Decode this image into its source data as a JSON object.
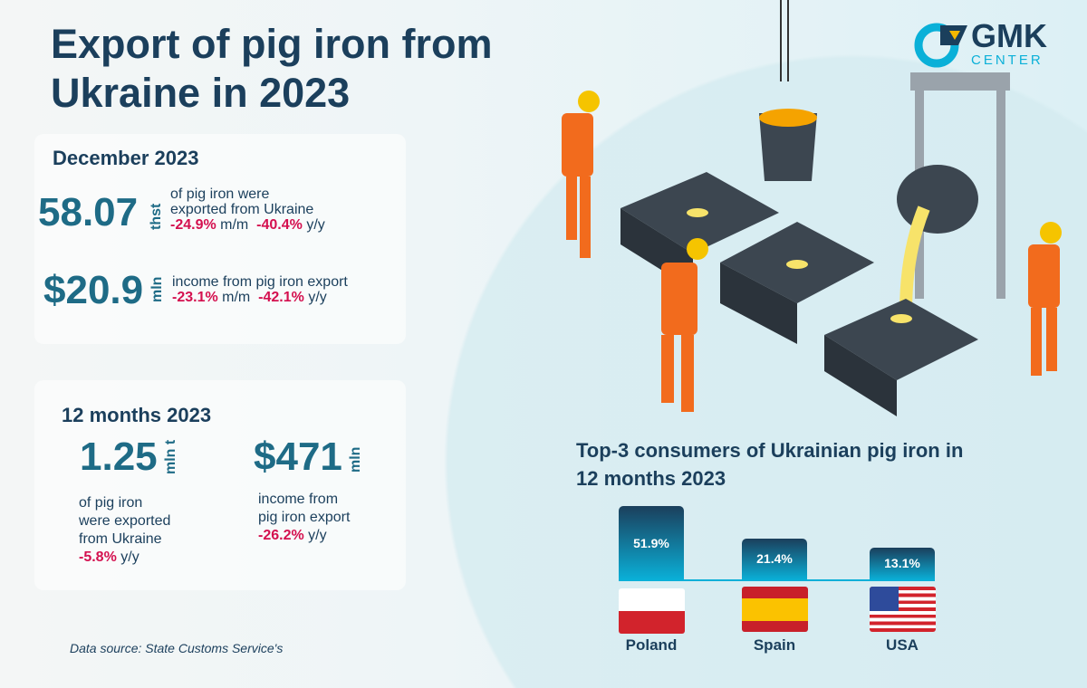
{
  "title": "Export of pig iron from Ukraine in 2023",
  "december": {
    "heading": "December 2023",
    "volume": {
      "value": "58.07",
      "unit": "thst",
      "line1": "of pig iron were",
      "line2": "exported from Ukraine",
      "mm": "-24.9%",
      "mm_label": "m/m",
      "yy": "-40.4%",
      "yy_label": "y/y"
    },
    "income": {
      "value": "$20.9",
      "unit": "mln",
      "line1": "income from pig iron export",
      "mm": "-23.1%",
      "mm_label": "m/m",
      "yy": "-42.1%",
      "yy_label": "y/y"
    }
  },
  "year": {
    "heading": "12 months 2023",
    "volume": {
      "value": "1.25",
      "unit": "mln t",
      "line1": "of pig iron",
      "line2": "were exported",
      "line3": "from Ukraine",
      "yy": "-5.8%",
      "yy_label": "y/y"
    },
    "income": {
      "value": "$471",
      "unit": "mln",
      "line1": "income from",
      "line2": "pig iron export",
      "yy": "-26.2%",
      "yy_label": "y/y"
    }
  },
  "source": "Data source: State Customs Service's",
  "logo": {
    "text": "GMK",
    "sub": "CENTER"
  },
  "chart_data": {
    "type": "bar",
    "title": "Top-3 consumers of Ukrainian pig iron in 12 months 2023",
    "categories": [
      "Poland",
      "Spain",
      "USA"
    ],
    "values": [
      51.9,
      21.4,
      13.1
    ],
    "labels": [
      "51.9%",
      "21.4%",
      "13.1%"
    ],
    "unit": "%"
  },
  "colors": {
    "accent": "#1e6b86",
    "negative": "#d4104f",
    "dark": "#1b3f5c"
  }
}
